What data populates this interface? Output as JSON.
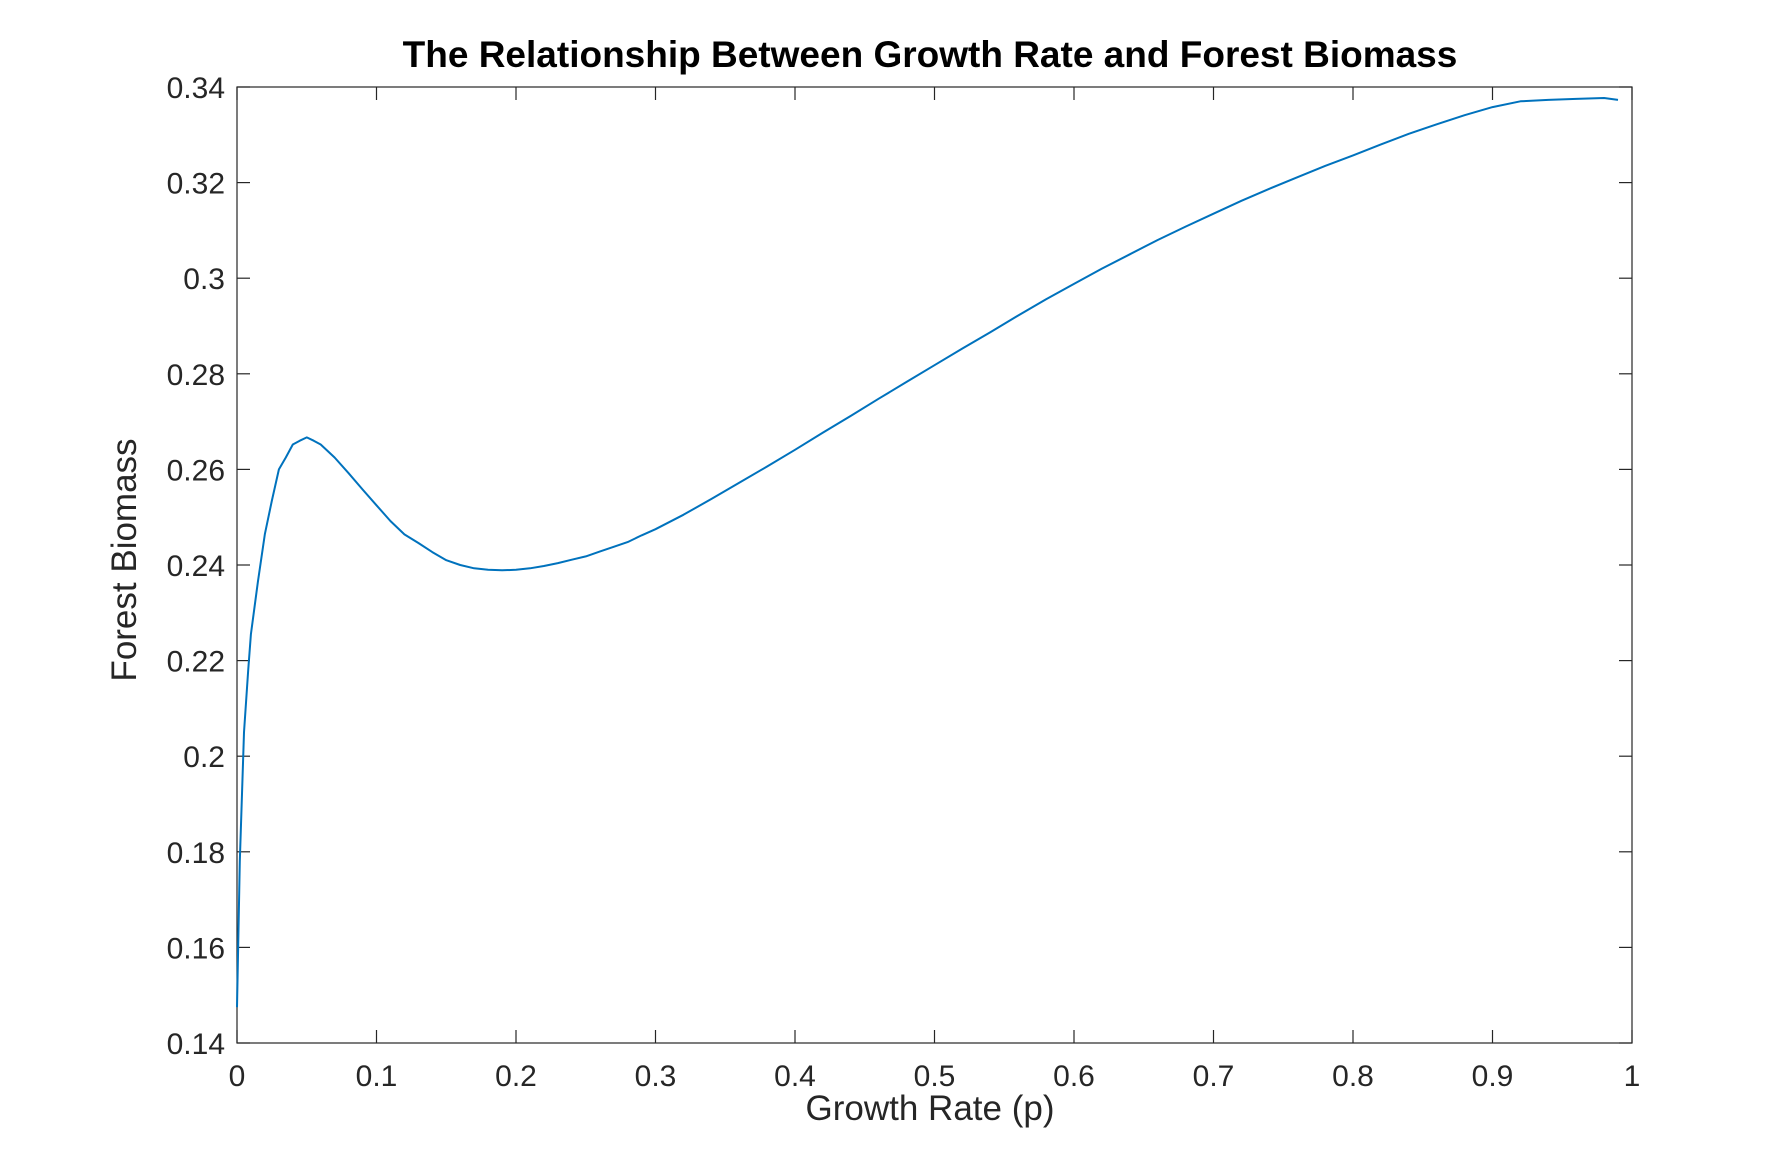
{
  "chart_data": {
    "type": "line",
    "title": "The Relationship Between Growth Rate and Forest Biomass",
    "xlabel": "Growth Rate (p)",
    "ylabel": "Forest Biomass",
    "xlim": [
      0,
      1
    ],
    "ylim": [
      0.14,
      0.34
    ],
    "xticks": [
      "0",
      "0.1",
      "0.2",
      "0.3",
      "0.4",
      "0.5",
      "0.6",
      "0.7",
      "0.8",
      "0.9",
      "1"
    ],
    "yticks": [
      "0.14",
      "0.16",
      "0.18",
      "0.2",
      "0.22",
      "0.24",
      "0.26",
      "0.28",
      "0.3",
      "0.32",
      "0.34"
    ],
    "grid": false,
    "box": true,
    "series": [
      {
        "color": "#0072BD",
        "x": [
          0,
          0.002,
          0.005,
          0.008,
          0.01,
          0.015,
          0.02,
          0.025,
          0.03,
          0.035,
          0.04,
          0.045,
          0.05,
          0.055,
          0.06,
          0.07,
          0.08,
          0.09,
          0.1,
          0.11,
          0.12,
          0.13,
          0.14,
          0.15,
          0.16,
          0.17,
          0.18,
          0.19,
          0.2,
          0.21,
          0.22,
          0.23,
          0.24,
          0.25,
          0.26,
          0.27,
          0.28,
          0.29,
          0.3,
          0.32,
          0.34,
          0.36,
          0.38,
          0.4,
          0.42,
          0.44,
          0.46,
          0.48,
          0.5,
          0.52,
          0.54,
          0.56,
          0.58,
          0.6,
          0.62,
          0.64,
          0.66,
          0.68,
          0.7,
          0.72,
          0.74,
          0.76,
          0.78,
          0.8,
          0.82,
          0.84,
          0.86,
          0.88,
          0.9,
          0.92,
          0.94,
          0.96,
          0.98,
          0.99
        ],
        "y": [
          0.1475,
          0.178,
          0.205,
          0.218,
          0.2255,
          0.2365,
          0.2465,
          0.2535,
          0.26,
          0.2625,
          0.2652,
          0.266,
          0.2667,
          0.266,
          0.2652,
          0.2625,
          0.2592,
          0.2558,
          0.2525,
          0.2492,
          0.2464,
          0.2446,
          0.2427,
          0.241,
          0.24,
          0.2393,
          0.239,
          0.2389,
          0.239,
          0.2393,
          0.2398,
          0.2404,
          0.2411,
          0.2418,
          0.2428,
          0.2438,
          0.2448,
          0.2462,
          0.2475,
          0.2505,
          0.2538,
          0.2572,
          0.2606,
          0.2641,
          0.2677,
          0.2712,
          0.2748,
          0.2783,
          0.2818,
          0.2853,
          0.2887,
          0.2922,
          0.2956,
          0.2988,
          0.302,
          0.305,
          0.308,
          0.3108,
          0.3135,
          0.3162,
          0.3187,
          0.3211,
          0.3235,
          0.3257,
          0.328,
          0.3302,
          0.3322,
          0.3341,
          0.3358,
          0.337,
          0.3373,
          0.3375,
          0.3377,
          0.3373
        ]
      }
    ]
  }
}
